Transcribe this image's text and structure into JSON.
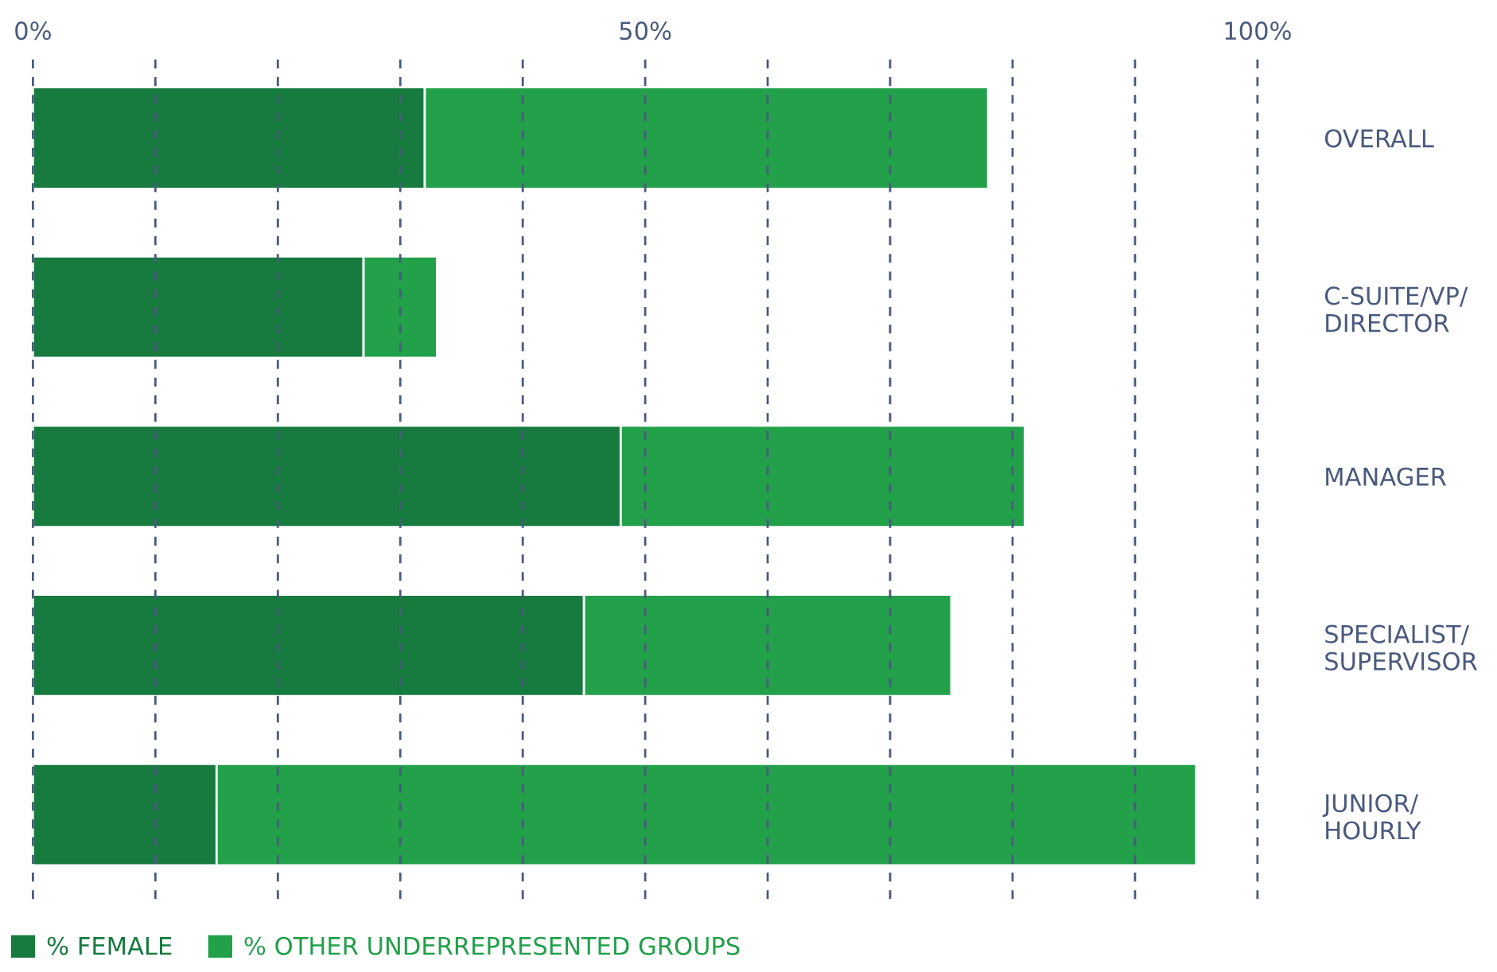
{
  "chart_data": {
    "type": "bar",
    "orientation": "horizontal",
    "stacked": true,
    "categories": [
      "OVERALL",
      "C-SUITE/VP/\nDIRECTOR",
      "MANAGER",
      "SPECIALIST/\nSUPERVISOR",
      "JUNIOR/\nHOURLY"
    ],
    "series": [
      {
        "name": "% FEMALE",
        "color": "#177a3f",
        "values": [
          32,
          27,
          48,
          45,
          15
        ]
      },
      {
        "name": "% OTHER UNDERREPRESENTED GROUPS",
        "color": "#22a04a",
        "values": [
          46,
          6,
          33,
          30,
          80
        ]
      }
    ],
    "xlim": [
      0,
      100
    ],
    "xticks": [
      {
        "value": 0,
        "label": "0%"
      },
      {
        "value": 10,
        "label": null
      },
      {
        "value": 20,
        "label": null
      },
      {
        "value": 30,
        "label": null
      },
      {
        "value": 40,
        "label": null
      },
      {
        "value": 50,
        "label": "50%"
      },
      {
        "value": 60,
        "label": null
      },
      {
        "value": 70,
        "label": null
      },
      {
        "value": 80,
        "label": null
      },
      {
        "value": 90,
        "label": null
      },
      {
        "value": 100,
        "label": "100%"
      }
    ],
    "grid": "x",
    "line_style": "dashed",
    "legend": "bottom left"
  }
}
